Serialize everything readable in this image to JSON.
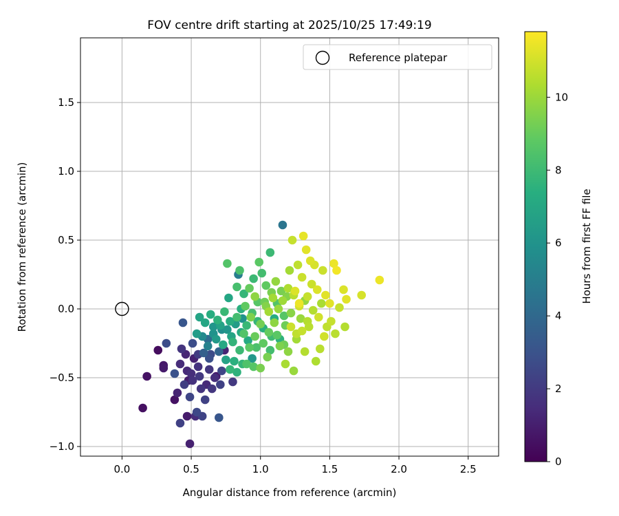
{
  "chart_data": {
    "type": "scatter",
    "title": "FOV centre drift starting at 2025/10/25 17:49:19",
    "xlabel": "Angular distance from reference (arcmin)",
    "ylabel": "Rotation from reference (arcmin)",
    "xlim": [
      -0.3,
      2.72
    ],
    "ylim": [
      -1.07,
      1.97
    ],
    "xticks": [
      0.0,
      0.5,
      1.0,
      1.5,
      2.0,
      2.5
    ],
    "xtick_labels": [
      "0.0",
      "0.5",
      "1.0",
      "1.5",
      "2.0",
      "2.5"
    ],
    "yticks": [
      -1.0,
      -0.5,
      0.0,
      0.5,
      1.0,
      1.5
    ],
    "ytick_labels": [
      "−1.0",
      "−0.5",
      "0.0",
      "0.5",
      "1.0",
      "1.5"
    ],
    "grid": true,
    "legend": {
      "position": "top-right",
      "entries": [
        "Reference platepar"
      ]
    },
    "reference_point": {
      "x": 0.0,
      "y": 0.0,
      "label": "Reference platepar"
    },
    "colorbar": {
      "label": "Hours from first FF file",
      "colormap": "viridis",
      "range": [
        0,
        11.8
      ],
      "ticks": [
        0,
        2,
        4,
        6,
        8,
        10
      ],
      "tick_labels": [
        "0",
        "2",
        "4",
        "6",
        "8",
        "10"
      ]
    },
    "points": [
      [
        0.15,
        -0.72,
        0.5
      ],
      [
        0.18,
        -0.49,
        0.6
      ],
      [
        0.26,
        -0.3,
        0.4
      ],
      [
        0.3,
        -0.41,
        0.8
      ],
      [
        0.3,
        -0.43,
        0.9
      ],
      [
        0.32,
        -0.25,
        2.8
      ],
      [
        0.38,
        -0.66,
        0.6
      ],
      [
        0.38,
        -0.47,
        3.0
      ],
      [
        0.4,
        -0.61,
        1.2
      ],
      [
        0.42,
        -0.83,
        2.3
      ],
      [
        0.42,
        -0.4,
        1.5
      ],
      [
        0.43,
        -0.29,
        1.8
      ],
      [
        0.44,
        -0.1,
        3.2
      ],
      [
        0.45,
        -0.55,
        2.2
      ],
      [
        0.46,
        -0.33,
        1.3
      ],
      [
        0.47,
        -0.78,
        0.9
      ],
      [
        0.48,
        -0.52,
        1.0
      ],
      [
        0.49,
        -0.98,
        1.1
      ],
      [
        0.49,
        -0.64,
        2.5
      ],
      [
        0.5,
        -0.47,
        1.6
      ],
      [
        0.51,
        -0.25,
        2.8
      ],
      [
        0.52,
        -0.36,
        1.1
      ],
      [
        0.53,
        -0.78,
        1.5
      ],
      [
        0.54,
        -0.75,
        2.6
      ],
      [
        0.55,
        -0.42,
        1.7
      ],
      [
        0.56,
        -0.49,
        2.0
      ],
      [
        0.57,
        -0.58,
        1.8
      ],
      [
        0.58,
        -0.78,
        2.4
      ],
      [
        0.59,
        -0.32,
        3.6
      ],
      [
        0.6,
        -0.66,
        2.3
      ],
      [
        0.61,
        -0.55,
        1.4
      ],
      [
        0.62,
        -0.22,
        4.2
      ],
      [
        0.63,
        -0.44,
        1.9
      ],
      [
        0.64,
        -0.33,
        2.7
      ],
      [
        0.65,
        -0.58,
        1.9
      ],
      [
        0.66,
        -0.13,
        6.2
      ],
      [
        0.68,
        -0.49,
        0.8
      ],
      [
        0.7,
        -0.31,
        3.8
      ],
      [
        0.7,
        -0.79,
        3.2
      ],
      [
        0.71,
        -0.55,
        2.3
      ],
      [
        0.72,
        -0.15,
        5.8
      ],
      [
        0.74,
        -0.3,
        1.2
      ],
      [
        0.75,
        -0.37,
        6.8
      ],
      [
        0.76,
        0.33,
        8.6
      ],
      [
        0.77,
        0.08,
        7.0
      ],
      [
        0.78,
        -0.44,
        7.8
      ],
      [
        0.79,
        -0.2,
        6.9
      ],
      [
        0.8,
        -0.53,
        2.0
      ],
      [
        0.81,
        -0.38,
        7.5
      ],
      [
        0.82,
        -0.11,
        6.5
      ],
      [
        0.83,
        0.16,
        8.3
      ],
      [
        0.84,
        0.25,
        5.0
      ],
      [
        0.85,
        0.28,
        8.4
      ],
      [
        0.86,
        -0.17,
        7.2
      ],
      [
        0.87,
        -0.07,
        6.0
      ],
      [
        0.88,
        0.11,
        7.8
      ],
      [
        0.89,
        0.02,
        8.9
      ],
      [
        0.9,
        -0.4,
        8.5
      ],
      [
        0.91,
        -0.23,
        7.2
      ],
      [
        0.92,
        0.15,
        9.0
      ],
      [
        0.93,
        -0.06,
        9.5
      ],
      [
        0.94,
        -0.36,
        6.3
      ],
      [
        0.95,
        0.22,
        8.0
      ],
      [
        0.96,
        0.09,
        9.8
      ],
      [
        0.97,
        -0.28,
        8.4
      ],
      [
        0.98,
        -0.09,
        7.8
      ],
      [
        0.99,
        0.34,
        8.8
      ],
      [
        1.0,
        -0.43,
        9.4
      ],
      [
        1.01,
        0.26,
        8.2
      ],
      [
        1.02,
        -0.14,
        7.5
      ],
      [
        1.03,
        0.05,
        9.2
      ],
      [
        1.04,
        0.17,
        8.9
      ],
      [
        1.05,
        -0.35,
        9.4
      ],
      [
        1.06,
        -0.02,
        10.2
      ],
      [
        1.07,
        0.41,
        8.0
      ],
      [
        1.08,
        -0.2,
        8.1
      ],
      [
        1.09,
        0.08,
        10.2
      ],
      [
        1.1,
        -0.07,
        7.3
      ],
      [
        1.11,
        0.2,
        9.9
      ],
      [
        1.12,
        -0.19,
        8.8
      ],
      [
        1.13,
        0.0,
        10.0
      ],
      [
        1.14,
        -0.22,
        7.6
      ],
      [
        1.15,
        0.13,
        9.4
      ],
      [
        1.16,
        0.61,
        4.6
      ],
      [
        1.17,
        -0.05,
        8.7
      ],
      [
        1.18,
        -0.4,
        10.3
      ],
      [
        1.19,
        0.09,
        9.6
      ],
      [
        1.2,
        -0.31,
        9.8
      ],
      [
        1.21,
        0.28,
        10.2
      ],
      [
        1.22,
        -0.13,
        10.9
      ],
      [
        1.23,
        0.5,
        10.8
      ],
      [
        1.24,
        -0.45,
        10.0
      ],
      [
        1.25,
        0.13,
        11.2
      ],
      [
        1.26,
        -0.18,
        10.7
      ],
      [
        1.27,
        0.32,
        10.7
      ],
      [
        1.28,
        0.04,
        11.5
      ],
      [
        1.29,
        -0.07,
        10.0
      ],
      [
        1.3,
        0.23,
        10.9
      ],
      [
        1.31,
        0.53,
        11.4
      ],
      [
        1.32,
        -0.31,
        10.5
      ],
      [
        1.33,
        0.43,
        11.3
      ],
      [
        1.34,
        0.09,
        10.8
      ],
      [
        1.35,
        -0.13,
        10.6
      ],
      [
        1.36,
        0.35,
        11.2
      ],
      [
        1.37,
        0.18,
        10.9
      ],
      [
        1.38,
        -0.01,
        10.5
      ],
      [
        1.39,
        0.32,
        11.1
      ],
      [
        1.4,
        -0.38,
        10.4
      ],
      [
        1.41,
        0.14,
        11.2
      ],
      [
        1.42,
        -0.06,
        11.0
      ],
      [
        1.43,
        -0.29,
        10.6
      ],
      [
        1.44,
        0.04,
        10.3
      ],
      [
        1.45,
        0.28,
        10.9
      ],
      [
        1.46,
        -0.2,
        11.0
      ],
      [
        1.47,
        0.1,
        11.3
      ],
      [
        1.48,
        -0.13,
        10.7
      ],
      [
        1.5,
        0.04,
        11.3
      ],
      [
        1.51,
        -0.09,
        10.8
      ],
      [
        1.53,
        0.33,
        11.5
      ],
      [
        1.54,
        -0.18,
        10.6
      ],
      [
        1.55,
        0.28,
        11.6
      ],
      [
        1.57,
        0.01,
        10.8
      ],
      [
        1.6,
        0.14,
        11.2
      ],
      [
        1.61,
        -0.13,
        10.5
      ],
      [
        1.62,
        0.07,
        11.3
      ],
      [
        1.73,
        0.1,
        11.1
      ],
      [
        1.86,
        0.21,
        11.5
      ],
      [
        0.54,
        -0.18,
        6.5
      ],
      [
        0.56,
        -0.06,
        6.9
      ],
      [
        0.58,
        -0.2,
        5.6
      ],
      [
        0.6,
        -0.1,
        7.0
      ],
      [
        0.62,
        -0.27,
        5.2
      ],
      [
        0.64,
        -0.04,
        7.4
      ],
      [
        0.66,
        -0.18,
        6.0
      ],
      [
        0.68,
        -0.22,
        6.4
      ],
      [
        0.69,
        -0.08,
        7.6
      ],
      [
        0.71,
        -0.12,
        6.8
      ],
      [
        0.73,
        -0.26,
        7.1
      ],
      [
        0.74,
        -0.02,
        7.9
      ],
      [
        0.76,
        -0.15,
        6.2
      ],
      [
        0.78,
        -0.09,
        7.4
      ],
      [
        0.8,
        -0.24,
        7.7
      ],
      [
        0.83,
        -0.06,
        8.2
      ],
      [
        0.85,
        -0.3,
        8.0
      ],
      [
        0.86,
        0.0,
        7.5
      ],
      [
        0.88,
        -0.18,
        8.6
      ],
      [
        0.9,
        -0.12,
        7.9
      ],
      [
        0.92,
        -0.28,
        8.8
      ],
      [
        0.94,
        -0.03,
        8.3
      ],
      [
        0.96,
        -0.2,
        9.1
      ],
      [
        0.98,
        0.05,
        8.7
      ],
      [
        1.0,
        -0.11,
        9.3
      ],
      [
        1.02,
        -0.25,
        8.9
      ],
      [
        1.04,
        0.02,
        9.6
      ],
      [
        1.06,
        -0.17,
        9.0
      ],
      [
        1.08,
        0.12,
        9.4
      ],
      [
        1.1,
        -0.1,
        9.8
      ],
      [
        1.12,
        0.04,
        8.6
      ],
      [
        1.14,
        -0.27,
        9.5
      ],
      [
        1.16,
        0.06,
        10.1
      ],
      [
        1.18,
        -0.12,
        9.2
      ],
      [
        1.2,
        0.15,
        10.4
      ],
      [
        1.22,
        -0.03,
        9.7
      ],
      [
        1.24,
        0.1,
        10.6
      ],
      [
        1.26,
        -0.22,
        10.2
      ],
      [
        1.28,
        0.02,
        11.0
      ],
      [
        1.3,
        -0.16,
        10.8
      ],
      [
        1.32,
        0.06,
        9.9
      ],
      [
        1.34,
        -0.09,
        10.5
      ],
      [
        0.83,
        -0.46,
        7.6
      ],
      [
        0.87,
        -0.4,
        7.8
      ],
      [
        0.95,
        -0.42,
        8.7
      ],
      [
        1.07,
        -0.3,
        8.2
      ],
      [
        1.17,
        -0.26,
        9.2
      ],
      [
        0.47,
        -0.45,
        1.4
      ],
      [
        0.51,
        -0.52,
        1.7
      ],
      [
        0.55,
        -0.33,
        2.1
      ],
      [
        0.63,
        -0.36,
        2.9
      ],
      [
        0.67,
        -0.5,
        1.6
      ],
      [
        0.72,
        -0.45,
        2.5
      ]
    ]
  }
}
